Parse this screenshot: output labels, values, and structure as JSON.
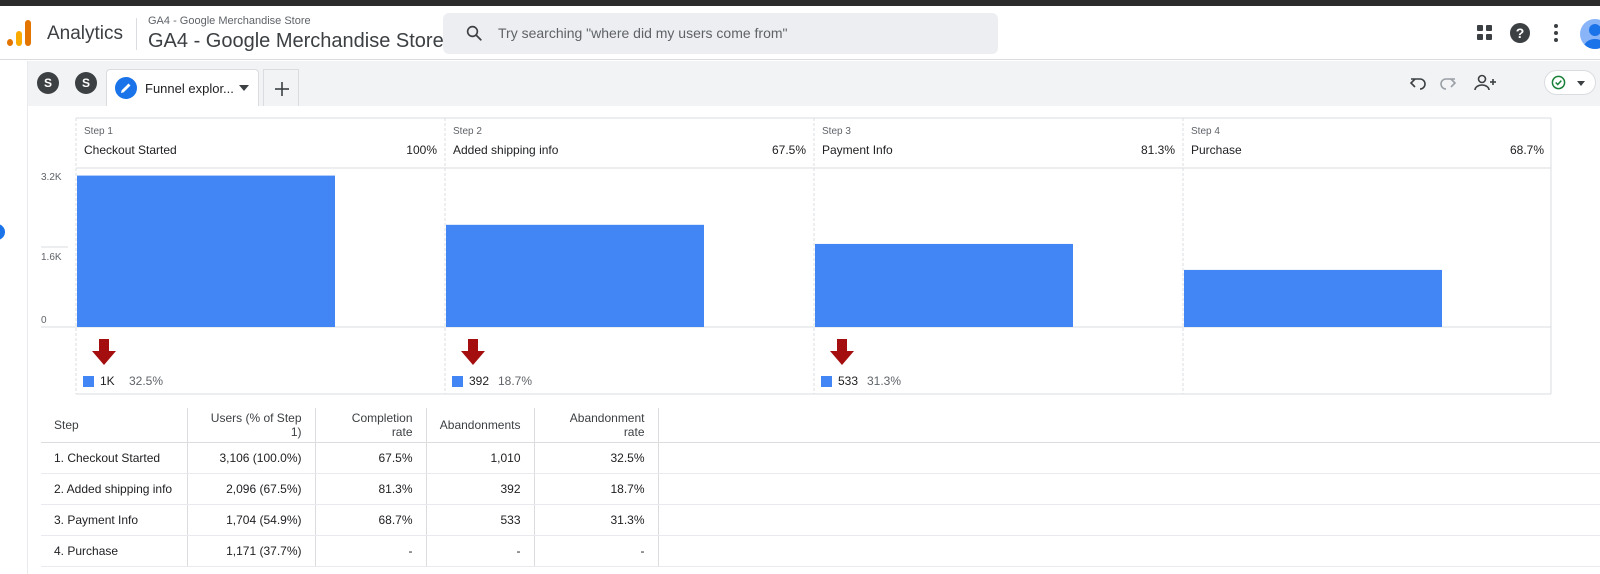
{
  "header": {
    "app_name": "Analytics",
    "property_small": "GA4 - Google Merchandise Store",
    "property_big": "GA4 - Google Merchandise Store",
    "search_placeholder": "Try searching \"where did my users come from\""
  },
  "tabbar": {
    "segments": [
      "S",
      "S"
    ],
    "active_tab_label": "Funnel explor..."
  },
  "colors": {
    "bar": "#4285f4",
    "drop_arrow": "#a50e0e",
    "accent": "#1a73e8",
    "status_ok": "#188038"
  },
  "chart_data": {
    "type": "bar",
    "categories": [
      "Checkout Started",
      "Added shipping info",
      "Payment Info",
      "Purchase"
    ],
    "steps": [
      {
        "step": "Step 1",
        "name": "Checkout Started",
        "pct": "100%",
        "users": 3106
      },
      {
        "step": "Step 2",
        "name": "Added shipping info",
        "pct": "67.5%",
        "users": 2096
      },
      {
        "step": "Step 3",
        "name": "Payment Info",
        "pct": "81.3%",
        "users": 1704
      },
      {
        "step": "Step 4",
        "name": "Purchase",
        "pct": "68.7%",
        "users": 1171
      }
    ],
    "values": [
      3106,
      2096,
      1704,
      1171
    ],
    "yticks": [
      "3.2K",
      "1.6K",
      "0"
    ],
    "ylim": [
      0,
      3200
    ],
    "dropoffs": [
      {
        "count": "1K",
        "rate": "32.5%"
      },
      {
        "count": "392",
        "rate": "18.7%"
      },
      {
        "count": "533",
        "rate": "31.3%"
      }
    ]
  },
  "table": {
    "headers": [
      "Step",
      "Users (% of Step 1)",
      "Completion rate",
      "Abandonments",
      "Abandonment rate"
    ],
    "rows": [
      [
        "1. Checkout Started",
        "3,106 (100.0%)",
        "67.5%",
        "1,010",
        "32.5%"
      ],
      [
        "2. Added shipping info",
        "2,096 (67.5%)",
        "81.3%",
        "392",
        "18.7%"
      ],
      [
        "3. Payment Info",
        "1,704 (54.9%)",
        "68.7%",
        "533",
        "31.3%"
      ],
      [
        "4. Purchase",
        "1,171 (37.7%)",
        "-",
        "-",
        "-"
      ]
    ]
  }
}
